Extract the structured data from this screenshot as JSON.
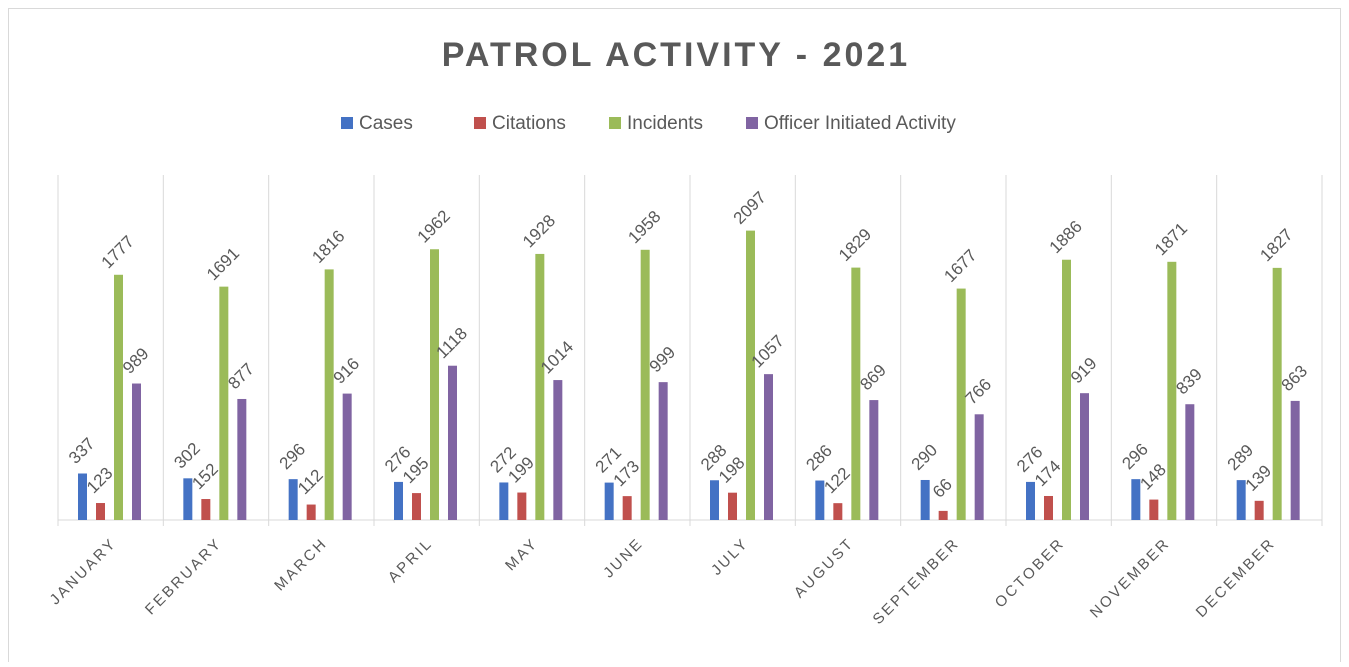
{
  "chart_data": {
    "type": "bar",
    "title": "PATROL ACTIVITY - 2021",
    "categories": [
      "JANUARY",
      "FEBRUARY",
      "MARCH",
      "APRIL",
      "MAY",
      "JUNE",
      "JULY",
      "AUGUST",
      "SEPTEMBER",
      "OCTOBER",
      "NOVEMBER",
      "DECEMBER"
    ],
    "series": [
      {
        "name": "Cases",
        "color": "#4472c4",
        "values": [
          337,
          302,
          296,
          276,
          272,
          271,
          288,
          286,
          290,
          276,
          296,
          289
        ]
      },
      {
        "name": "Citations",
        "color": "#c0504d",
        "values": [
          123,
          152,
          112,
          195,
          199,
          173,
          198,
          122,
          66,
          174,
          148,
          139
        ]
      },
      {
        "name": "Incidents",
        "color": "#9bbb59",
        "values": [
          1777,
          1691,
          1816,
          1962,
          1928,
          1958,
          2097,
          1829,
          1677,
          1886,
          1871,
          1827
        ]
      },
      {
        "name": "Officer Initiated Activity",
        "color": "#8064a2",
        "values": [
          989,
          877,
          916,
          1118,
          1014,
          999,
          1057,
          869,
          766,
          919,
          839,
          863
        ]
      }
    ],
    "ylim": [
      0,
      2500
    ],
    "legend": "top"
  }
}
